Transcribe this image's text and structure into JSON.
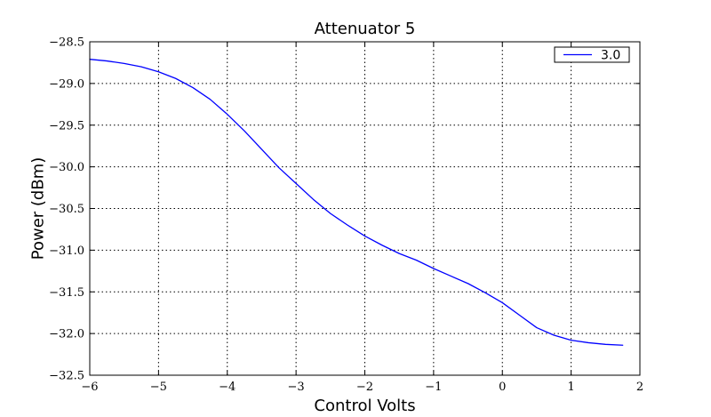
{
  "chart_data": {
    "type": "line",
    "title": "Attenuator 5",
    "xlabel": "Control Volts",
    "ylabel": "Power (dBm)",
    "xlim": [
      -6,
      2
    ],
    "ylim": [
      -32.5,
      -28.5
    ],
    "xticks": [
      -6,
      -5,
      -4,
      -3,
      -2,
      -1,
      0,
      1,
      2
    ],
    "yticks": [
      -28.5,
      -29.0,
      -29.5,
      -30.0,
      -30.5,
      -31.0,
      -31.5,
      -32.0,
      -32.5
    ],
    "xtick_labels": [
      "−6",
      "−5",
      "−4",
      "−3",
      "−2",
      "−1",
      "0",
      "1",
      "2"
    ],
    "ytick_labels": [
      "−28.5",
      "−29.0",
      "−29.5",
      "−30.0",
      "−30.5",
      "−31.0",
      "−31.5",
      "−32.0",
      "−32.5"
    ],
    "grid": true,
    "legend_position": "top-right",
    "series": [
      {
        "name": "3.0",
        "color": "#0000ff",
        "x": [
          -6.0,
          -5.75,
          -5.5,
          -5.25,
          -5.0,
          -4.75,
          -4.5,
          -4.25,
          -4.0,
          -3.75,
          -3.5,
          -3.25,
          -3.0,
          -2.75,
          -2.5,
          -2.25,
          -2.0,
          -1.75,
          -1.5,
          -1.25,
          -1.0,
          -0.75,
          -0.5,
          -0.25,
          0.0,
          0.25,
          0.5,
          0.75,
          1.0,
          1.25,
          1.5,
          1.75
        ],
        "y": [
          -28.71,
          -28.73,
          -28.76,
          -28.8,
          -28.86,
          -28.94,
          -29.05,
          -29.19,
          -29.37,
          -29.57,
          -29.79,
          -30.01,
          -30.2,
          -30.39,
          -30.56,
          -30.7,
          -30.83,
          -30.94,
          -31.04,
          -31.12,
          -31.22,
          -31.31,
          -31.4,
          -31.51,
          -31.63,
          -31.78,
          -31.93,
          -32.02,
          -32.08,
          -32.11,
          -32.13,
          -32.14
        ]
      }
    ]
  }
}
